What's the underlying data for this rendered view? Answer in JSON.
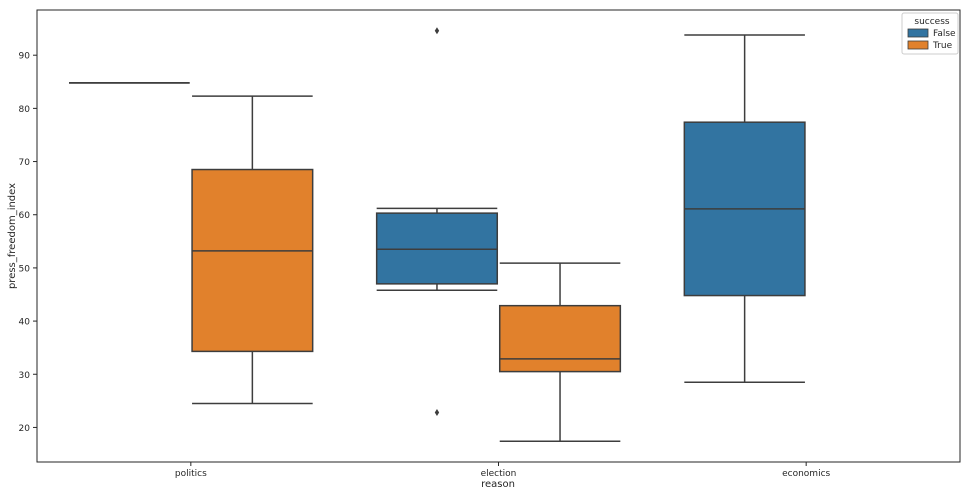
{
  "chart_data": {
    "type": "box",
    "xlabel": "reason",
    "ylabel": "press_freedom_index",
    "categories": [
      "politics",
      "election",
      "economics"
    ],
    "ylim": [
      13.5,
      98.5
    ],
    "yticks": [
      20,
      30,
      40,
      50,
      60,
      70,
      80,
      90
    ],
    "grid": false,
    "legend": {
      "title": "success",
      "position": "top-right"
    },
    "colors": {
      "False": "#3274a1",
      "True": "#e1812c",
      "line": "#3d3d3d"
    },
    "series": [
      {
        "name": "False",
        "boxes": [
          {
            "category": "politics",
            "whisker_low": 84.8,
            "q1": 84.8,
            "median": 84.8,
            "q3": 84.8,
            "whisker_high": 84.8,
            "outliers": []
          },
          {
            "category": "election",
            "whisker_low": 45.8,
            "q1": 47.0,
            "median": 53.5,
            "q3": 60.3,
            "whisker_high": 61.2,
            "outliers": [
              94.6,
              22.8
            ]
          },
          {
            "category": "economics",
            "whisker_low": 28.5,
            "q1": 44.8,
            "median": 61.1,
            "q3": 77.4,
            "whisker_high": 93.8,
            "outliers": []
          }
        ]
      },
      {
        "name": "True",
        "boxes": [
          {
            "category": "politics",
            "whisker_low": 24.5,
            "q1": 34.3,
            "median": 53.2,
            "q3": 68.5,
            "whisker_high": 82.3,
            "outliers": []
          },
          {
            "category": "election",
            "whisker_low": 17.4,
            "q1": 30.5,
            "median": 32.9,
            "q3": 42.9,
            "whisker_high": 50.9,
            "outliers": []
          }
        ]
      }
    ]
  }
}
